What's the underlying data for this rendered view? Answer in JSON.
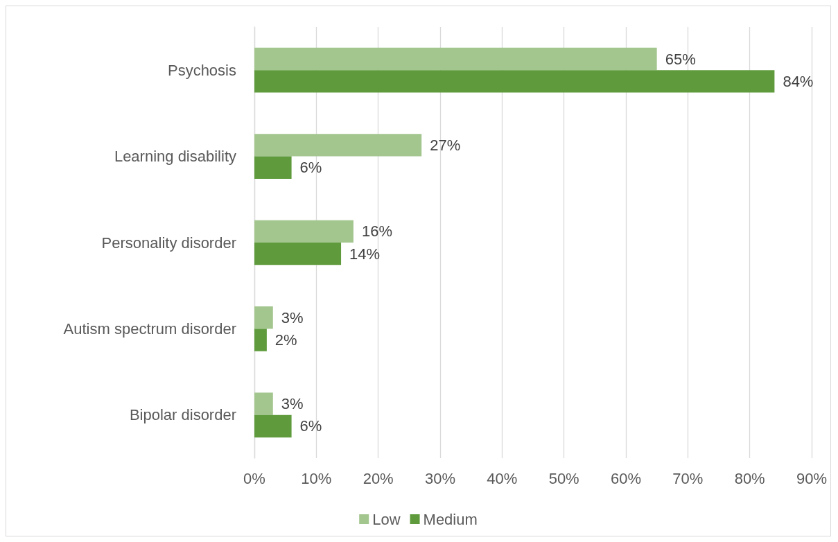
{
  "chart_data": {
    "type": "bar",
    "orientation": "horizontal",
    "categories": [
      "Psychosis",
      "Learning disability",
      "Personality disorder",
      "Autism spectrum disorder",
      "Bipolar disorder"
    ],
    "series": [
      {
        "name": "Low",
        "color": "#a3c68f",
        "values": [
          65,
          27,
          16,
          3,
          3
        ],
        "value_labels": [
          "65%",
          "27%",
          "16%",
          "3%",
          "3%"
        ]
      },
      {
        "name": "Medium",
        "color": "#5f9b3c",
        "values": [
          84,
          6,
          14,
          2,
          6
        ],
        "value_labels": [
          "84%",
          "6%",
          "14%",
          "2%",
          "6%"
        ]
      }
    ],
    "xlim": [
      0,
      90
    ],
    "xticks": [
      {
        "value": 0,
        "label": "0%"
      },
      {
        "value": 10,
        "label": "10%"
      },
      {
        "value": 20,
        "label": "20%"
      },
      {
        "value": 30,
        "label": "30%"
      },
      {
        "value": 40,
        "label": "40%"
      },
      {
        "value": 50,
        "label": "50%"
      },
      {
        "value": 60,
        "label": "60%"
      },
      {
        "value": 70,
        "label": "70%"
      },
      {
        "value": 80,
        "label": "80%"
      },
      {
        "value": 90,
        "label": "90%"
      }
    ],
    "grid": "x",
    "legend": "bottom"
  }
}
